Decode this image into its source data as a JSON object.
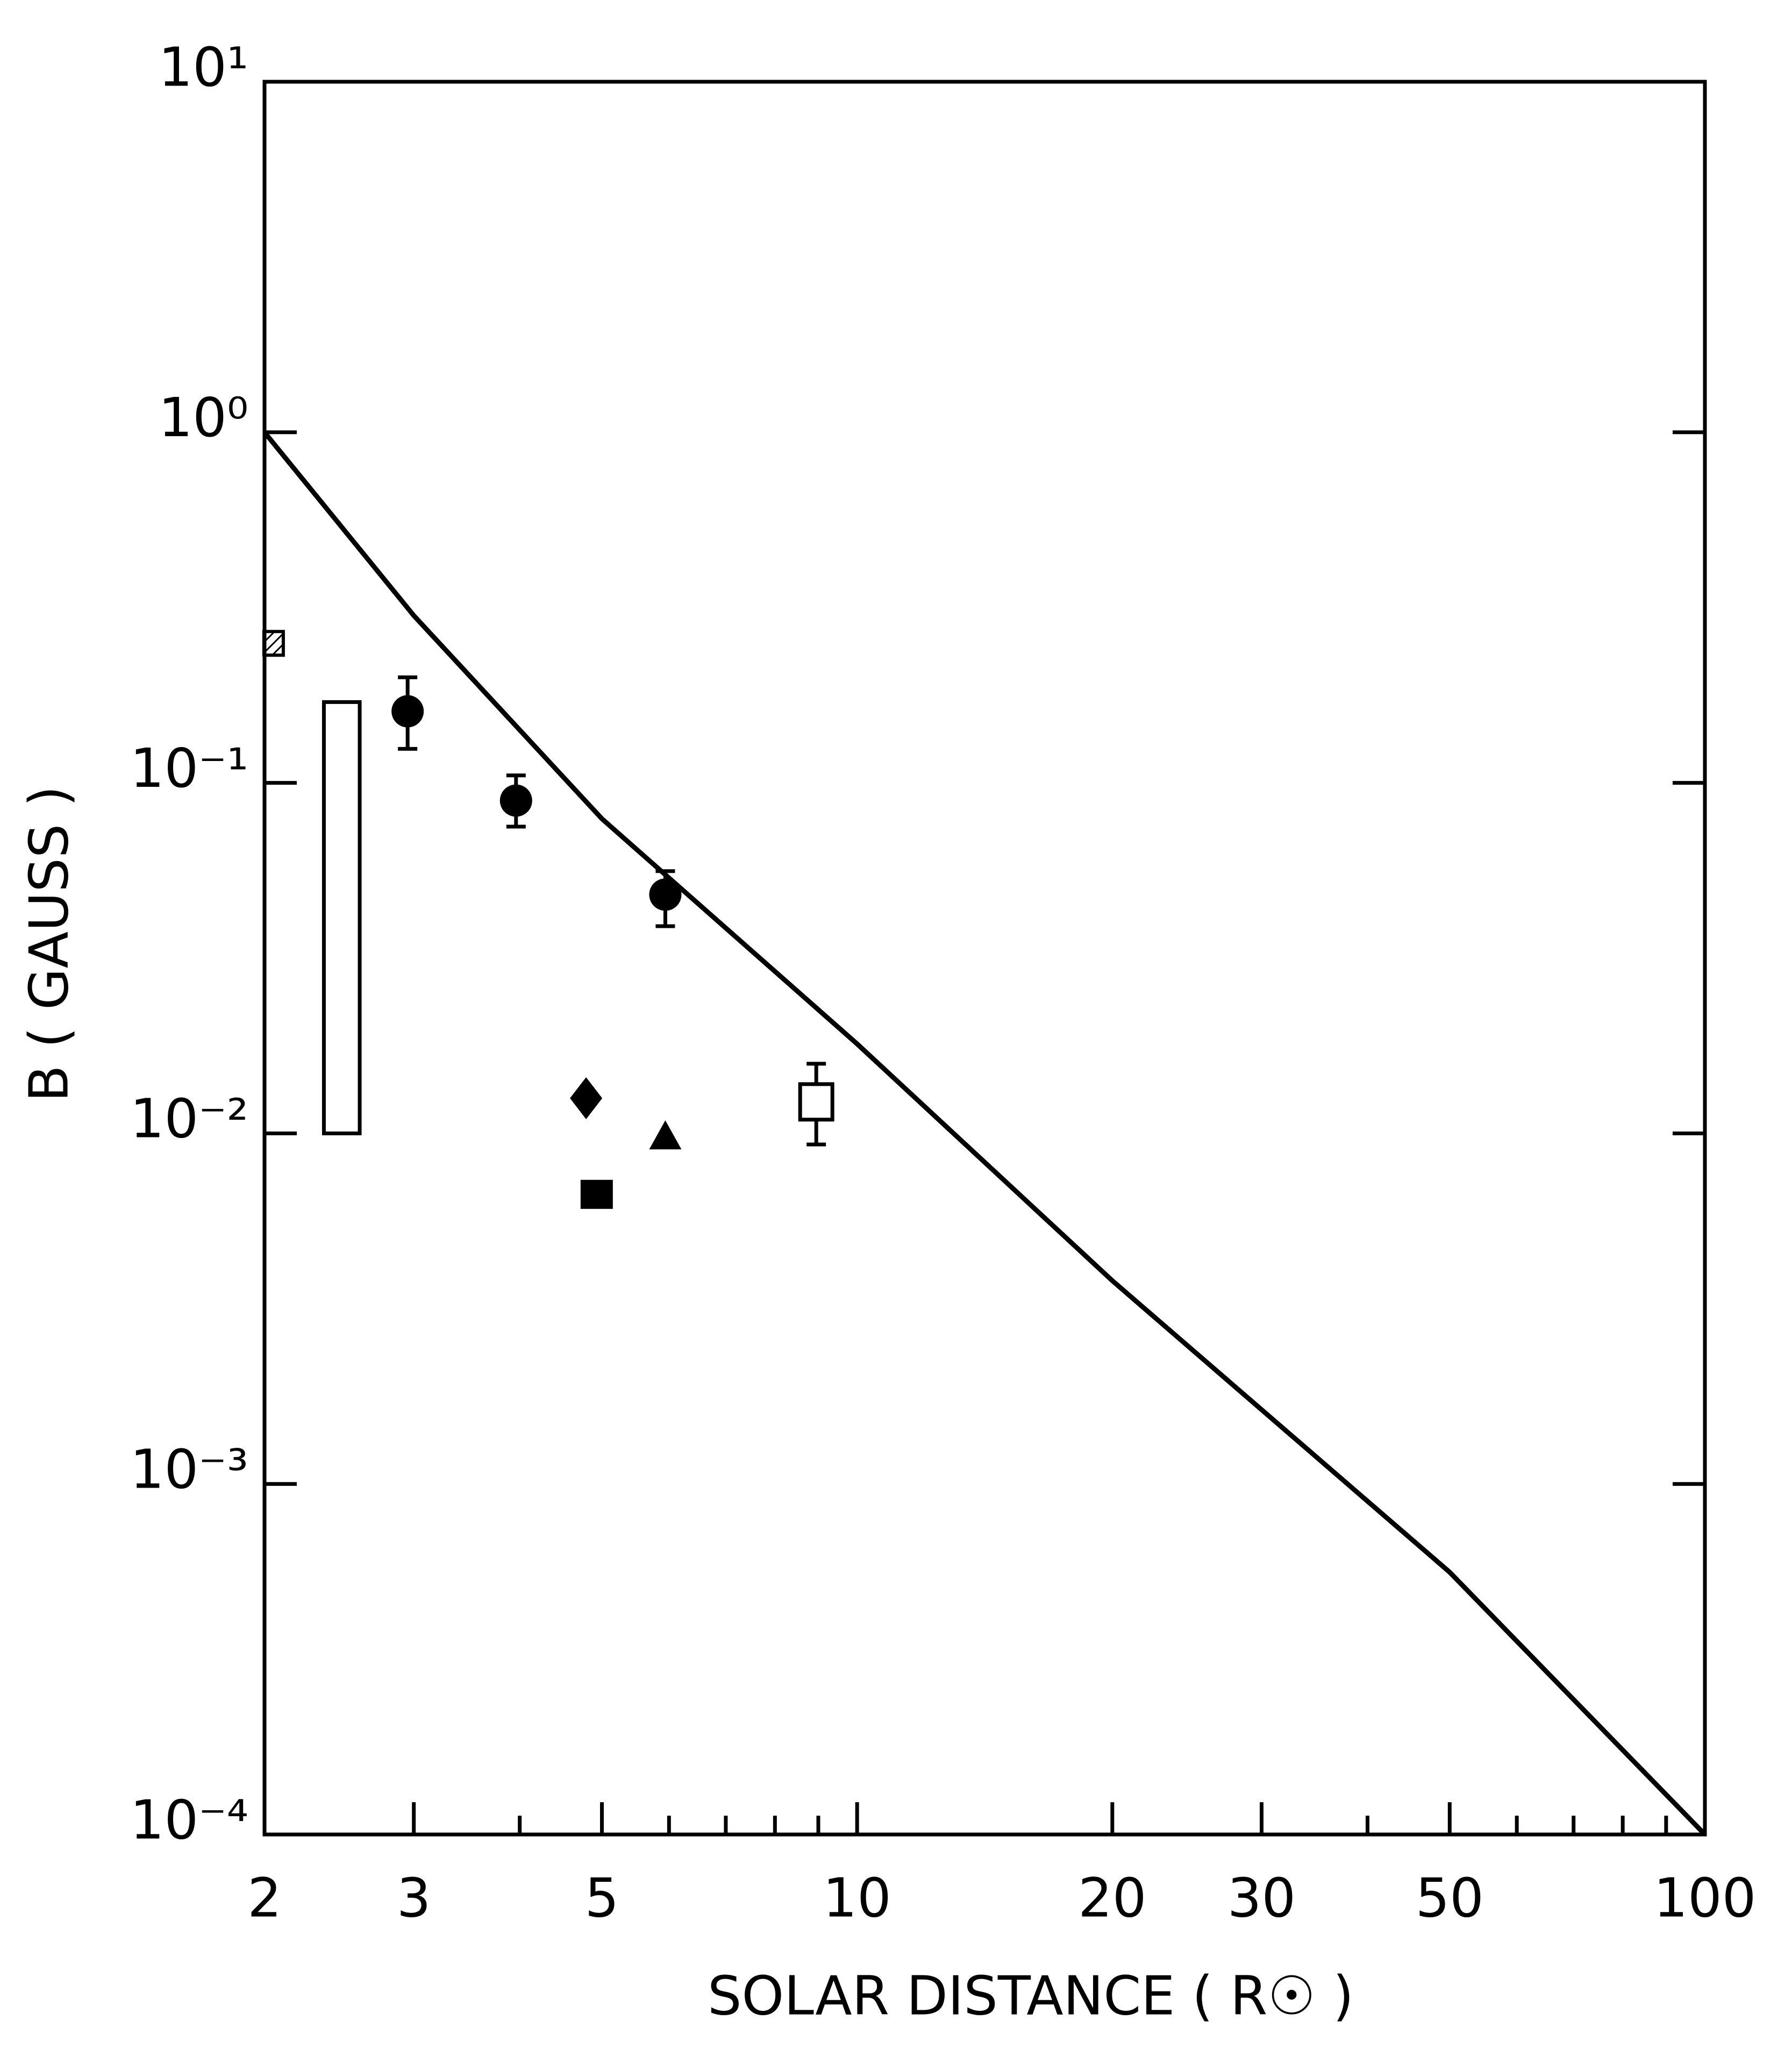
{
  "chart_data": {
    "type": "scatter",
    "xlabel": "SOLAR DISTANCE ( R☉ )",
    "ylabel": "B ( GAUSS )",
    "xscale": "log",
    "yscale": "log",
    "xlim": [
      2,
      100
    ],
    "ylim": [
      0.0001,
      10
    ],
    "xticks": [
      2,
      3,
      5,
      10,
      20,
      30,
      50,
      100
    ],
    "xminorticks": [
      4,
      6,
      7,
      8,
      9,
      40,
      60,
      70,
      80,
      90
    ],
    "yticks": [
      {
        "value": 0.0001,
        "label": "10⁻⁴"
      },
      {
        "value": 0.001,
        "label": "10⁻³"
      },
      {
        "value": 0.01,
        "label": "10⁻²"
      },
      {
        "value": 0.1,
        "label": "10⁻¹"
      },
      {
        "value": 1,
        "label": "10⁰"
      },
      {
        "value": 10,
        "label": "10¹"
      }
    ],
    "color": "#000000",
    "curve": {
      "x": [
        2,
        3,
        5,
        10,
        20,
        50,
        100
      ],
      "y": [
        1,
        0.3,
        0.079,
        0.018,
        0.0038,
        0.00056,
        0.0001
      ]
    },
    "points": [
      {
        "marker": "hatched-square",
        "x": 2.05,
        "y": 0.25
      },
      {
        "marker": "circle",
        "x": 2.95,
        "y": 0.16,
        "y_low": 0.125,
        "y_high": 0.2
      },
      {
        "marker": "circle",
        "x": 3.96,
        "y": 0.089,
        "y_low": 0.075,
        "y_high": 0.105
      },
      {
        "marker": "circle",
        "x": 5.94,
        "y": 0.048,
        "y_low": 0.039,
        "y_high": 0.056
      },
      {
        "marker": "diamond",
        "x": 4.79,
        "y": 0.0126
      },
      {
        "marker": "filled-square",
        "x": 4.93,
        "y": 0.0067
      },
      {
        "marker": "triangle",
        "x": 5.94,
        "y": 0.0098
      },
      {
        "marker": "open-square",
        "x": 8.95,
        "y": 0.0123,
        "y_low": 0.0093,
        "y_high": 0.0158
      }
    ],
    "ranges": [
      {
        "x_low": 2.35,
        "x_high": 2.59,
        "y_low": 0.01,
        "y_high": 0.17
      }
    ]
  }
}
